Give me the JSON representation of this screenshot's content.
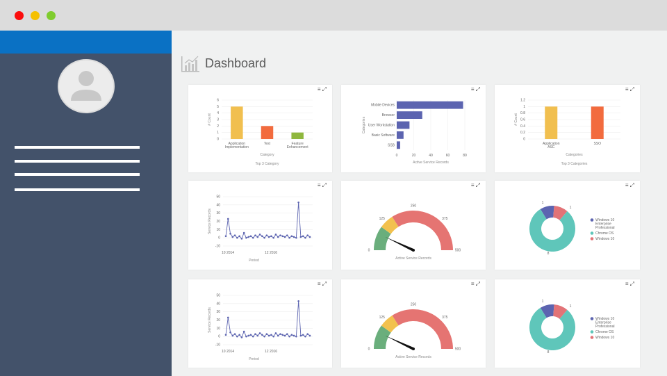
{
  "window": {
    "controls": {
      "close_color": "#fb0d0c",
      "minimize_color": "#f5c000",
      "zoom_color": "#7fcc2e"
    }
  },
  "header": {
    "title": "Dashboard",
    "icon": "bar-chart-icon"
  },
  "colors": {
    "accent": "#0a71c4",
    "sidebar": "#43526a",
    "orange": "#f1bf4f",
    "red": "#f26b3e",
    "green": "#8fb73e",
    "blue": "#5c64b0",
    "teal": "#5fc6ba",
    "pink": "#e27377",
    "gauge_red": "#e57472",
    "gauge_yellow": "#f2c14e",
    "gauge_green": "#6aae7c"
  },
  "toolbar": {
    "menu_label": "≡",
    "expand_label": "⤢"
  },
  "chart_data": [
    {
      "type": "bar",
      "categories": [
        "Application Implementation",
        "Test",
        "Feature Enhancement"
      ],
      "values": [
        5,
        2,
        1
      ],
      "xlabel": "Category",
      "ylabel": "# Count",
      "footer": "Top 3 Category",
      "ylim": [
        0,
        6
      ],
      "yticks": [
        0,
        1,
        2,
        3,
        4,
        5,
        6
      ],
      "colors": [
        "#f1bf4f",
        "#f26b3e",
        "#8fb73e"
      ]
    },
    {
      "type": "bar",
      "orientation": "horizontal",
      "categories": [
        "Mobile Devices",
        "Browser",
        "User Workstation",
        "Basic Software",
        "SSB"
      ],
      "values": [
        78,
        30,
        15,
        8,
        4
      ],
      "xlabel": "Active Service Records",
      "ylabel": "Categories",
      "xlim": [
        0,
        80
      ],
      "xticks": [
        0,
        20,
        40,
        60,
        80
      ],
      "color": "#5c64b0"
    },
    {
      "type": "bar",
      "categories": [
        "Application ASC",
        "SSO"
      ],
      "values": [
        1,
        1
      ],
      "xlabel": "Categories",
      "ylabel": "# Count",
      "footer": "Top 3 Categories",
      "ylim": [
        0,
        1.2
      ],
      "yticks": [
        0,
        0.2,
        0.4,
        0.6,
        0.8,
        1,
        1.2
      ],
      "colors": [
        "#f1bf4f",
        "#f26b3e"
      ]
    },
    {
      "type": "line",
      "x": [
        0,
        1,
        2,
        3,
        4,
        5,
        6,
        7,
        8,
        9,
        10,
        11,
        12,
        13,
        14,
        15,
        16,
        17,
        18,
        19,
        20,
        21,
        22,
        23,
        24,
        25,
        26,
        27,
        28,
        29,
        30,
        31,
        32,
        33,
        34,
        35,
        36,
        37
      ],
      "y": [
        2,
        23,
        5,
        1,
        3,
        0,
        2,
        -1,
        6,
        0,
        1,
        2,
        0,
        3,
        1,
        4,
        2,
        0,
        3,
        1,
        2,
        0,
        4,
        1,
        3,
        2,
        1,
        3,
        0,
        2,
        1,
        0,
        43,
        1,
        2,
        0,
        3,
        1
      ],
      "xticklabels": [
        "10 2014",
        "12 2016"
      ],
      "xlabel": "Period",
      "ylabel": "Service Records",
      "ylim": [
        -10,
        50
      ],
      "yticks": [
        -10,
        0,
        10,
        20,
        30,
        40,
        50
      ],
      "color": "#5c64b0"
    },
    {
      "type": "gauge",
      "min": 0,
      "max": 500,
      "tick_labels": [
        "0",
        "125",
        "250",
        "375",
        "500"
      ],
      "value": 70,
      "bands": [
        {
          "from": 0,
          "to": 100,
          "color": "#6aae7c"
        },
        {
          "from": 100,
          "to": 160,
          "color": "#f2c14e"
        },
        {
          "from": 160,
          "to": 500,
          "color": "#e57472"
        }
      ],
      "label": "Active Service Records"
    },
    {
      "type": "pie",
      "variant": "donut",
      "slices": [
        {
          "label": "Windows 10 Enterprise Professional",
          "value": 1,
          "color": "#5c64b0"
        },
        {
          "label": "Chrome OS",
          "value": 8,
          "color": "#5fc6ba"
        },
        {
          "label": "Windows 10",
          "value": 1,
          "color": "#e27377"
        }
      ],
      "value_labels": [
        "1",
        "1",
        "8"
      ]
    },
    {
      "type": "line",
      "x": [
        0,
        1,
        2,
        3,
        4,
        5,
        6,
        7,
        8,
        9,
        10,
        11,
        12,
        13,
        14,
        15,
        16,
        17,
        18,
        19,
        20,
        21,
        22,
        23,
        24,
        25,
        26,
        27,
        28,
        29,
        30,
        31,
        32,
        33,
        34,
        35,
        36,
        37
      ],
      "y": [
        2,
        23,
        5,
        1,
        3,
        0,
        2,
        -1,
        6,
        0,
        1,
        2,
        0,
        3,
        1,
        4,
        2,
        0,
        3,
        1,
        2,
        0,
        4,
        1,
        3,
        2,
        1,
        3,
        0,
        2,
        1,
        0,
        43,
        1,
        2,
        0,
        3,
        1
      ],
      "xticklabels": [
        "10 2014",
        "12 2016"
      ],
      "xlabel": "Period",
      "ylabel": "Service Records",
      "ylim": [
        -10,
        50
      ],
      "yticks": [
        -10,
        0,
        10,
        20,
        30,
        40,
        50
      ],
      "color": "#5c64b0"
    },
    {
      "type": "gauge",
      "min": 0,
      "max": 500,
      "tick_labels": [
        "0",
        "125",
        "250",
        "375",
        "500"
      ],
      "value": 70,
      "bands": [
        {
          "from": 0,
          "to": 100,
          "color": "#6aae7c"
        },
        {
          "from": 100,
          "to": 160,
          "color": "#f2c14e"
        },
        {
          "from": 160,
          "to": 500,
          "color": "#e57472"
        }
      ],
      "label": "Active Service Records"
    },
    {
      "type": "pie",
      "variant": "donut",
      "slices": [
        {
          "label": "Windows 10 Enterprise Professional",
          "value": 1,
          "color": "#5c64b0"
        },
        {
          "label": "Chrome OS",
          "value": 8,
          "color": "#5fc6ba"
        },
        {
          "label": "Windows 10",
          "value": 1,
          "color": "#e27377"
        }
      ],
      "value_labels": [
        "1",
        "1",
        "8"
      ]
    }
  ]
}
